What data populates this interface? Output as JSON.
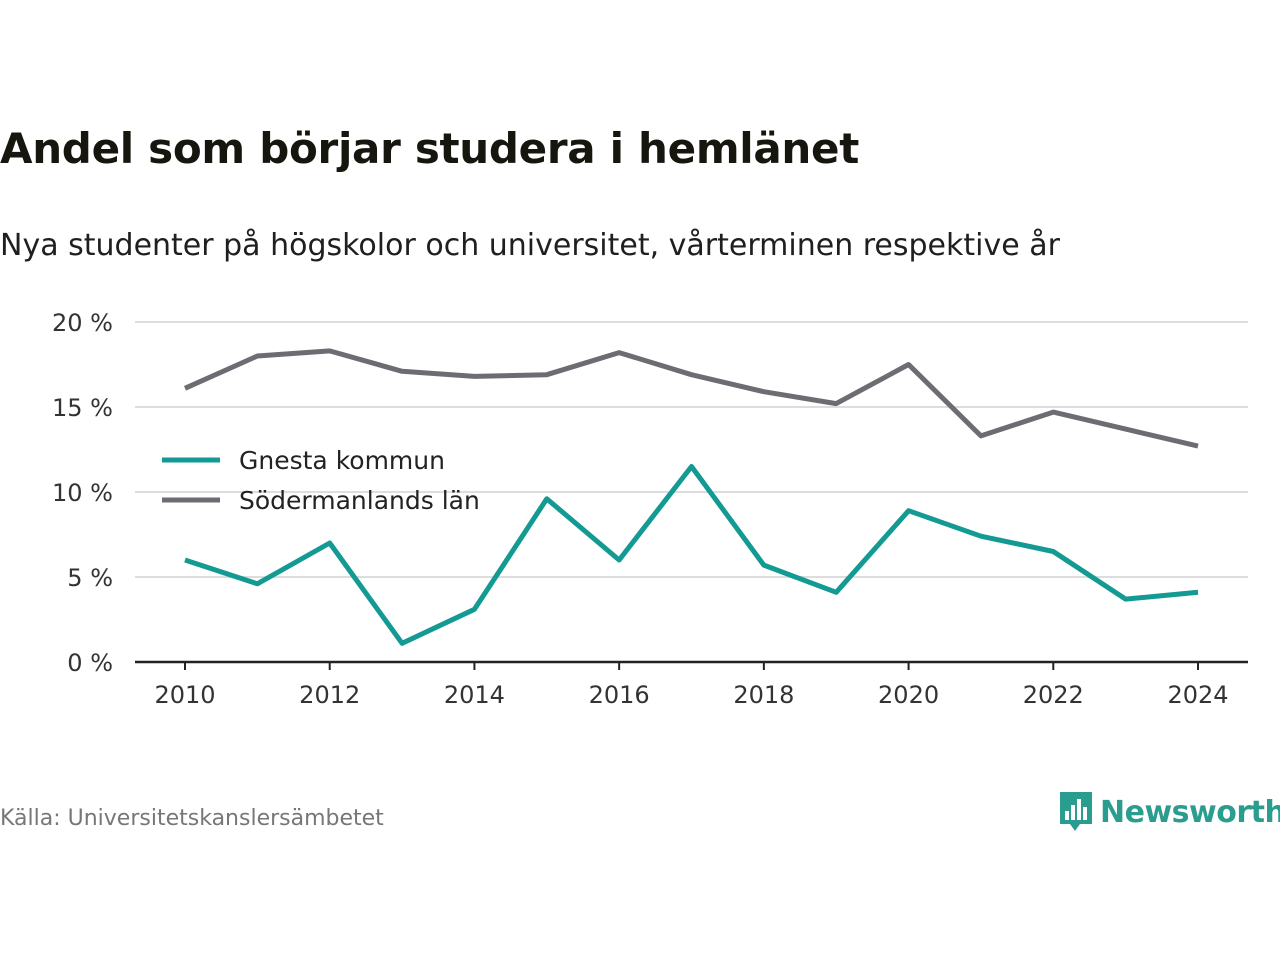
{
  "title": "Andel som börjar studera i hemlänet",
  "subtitle": "Nya studenter på högskolor och universitet, vårterminen respektive år",
  "source": "Källa: Universitetskanslersämbetet",
  "brand": "Newsworthy",
  "colors": {
    "gnesta": "#139a93",
    "sodermanland": "#6e6c73",
    "grid": "#dddddd",
    "axis": "#222222",
    "brand": "#2a9d8f"
  },
  "chart_data": {
    "type": "line",
    "x": [
      2010,
      2011,
      2012,
      2013,
      2014,
      2015,
      2016,
      2017,
      2018,
      2019,
      2020,
      2021,
      2022,
      2023,
      2024
    ],
    "series": [
      {
        "name": "Gnesta kommun",
        "values": [
          6.0,
          4.6,
          7.0,
          1.1,
          3.1,
          9.6,
          6.0,
          11.5,
          5.7,
          4.1,
          8.9,
          7.4,
          6.5,
          3.7,
          4.1
        ]
      },
      {
        "name": "Södermanlands län",
        "values": [
          16.1,
          18.0,
          18.3,
          17.1,
          16.8,
          16.9,
          18.2,
          16.9,
          15.9,
          15.2,
          17.5,
          13.3,
          14.7,
          13.7,
          12.7
        ]
      }
    ],
    "xticks": [
      "2010",
      "2012",
      "2014",
      "2016",
      "2018",
      "2020",
      "2022",
      "2024"
    ],
    "yticks": [
      "0 %",
      "5 %",
      "10 %",
      "15 %",
      "20 %"
    ],
    "ylim": [
      0,
      20
    ],
    "grid": true,
    "legend_position": "left-middle"
  }
}
